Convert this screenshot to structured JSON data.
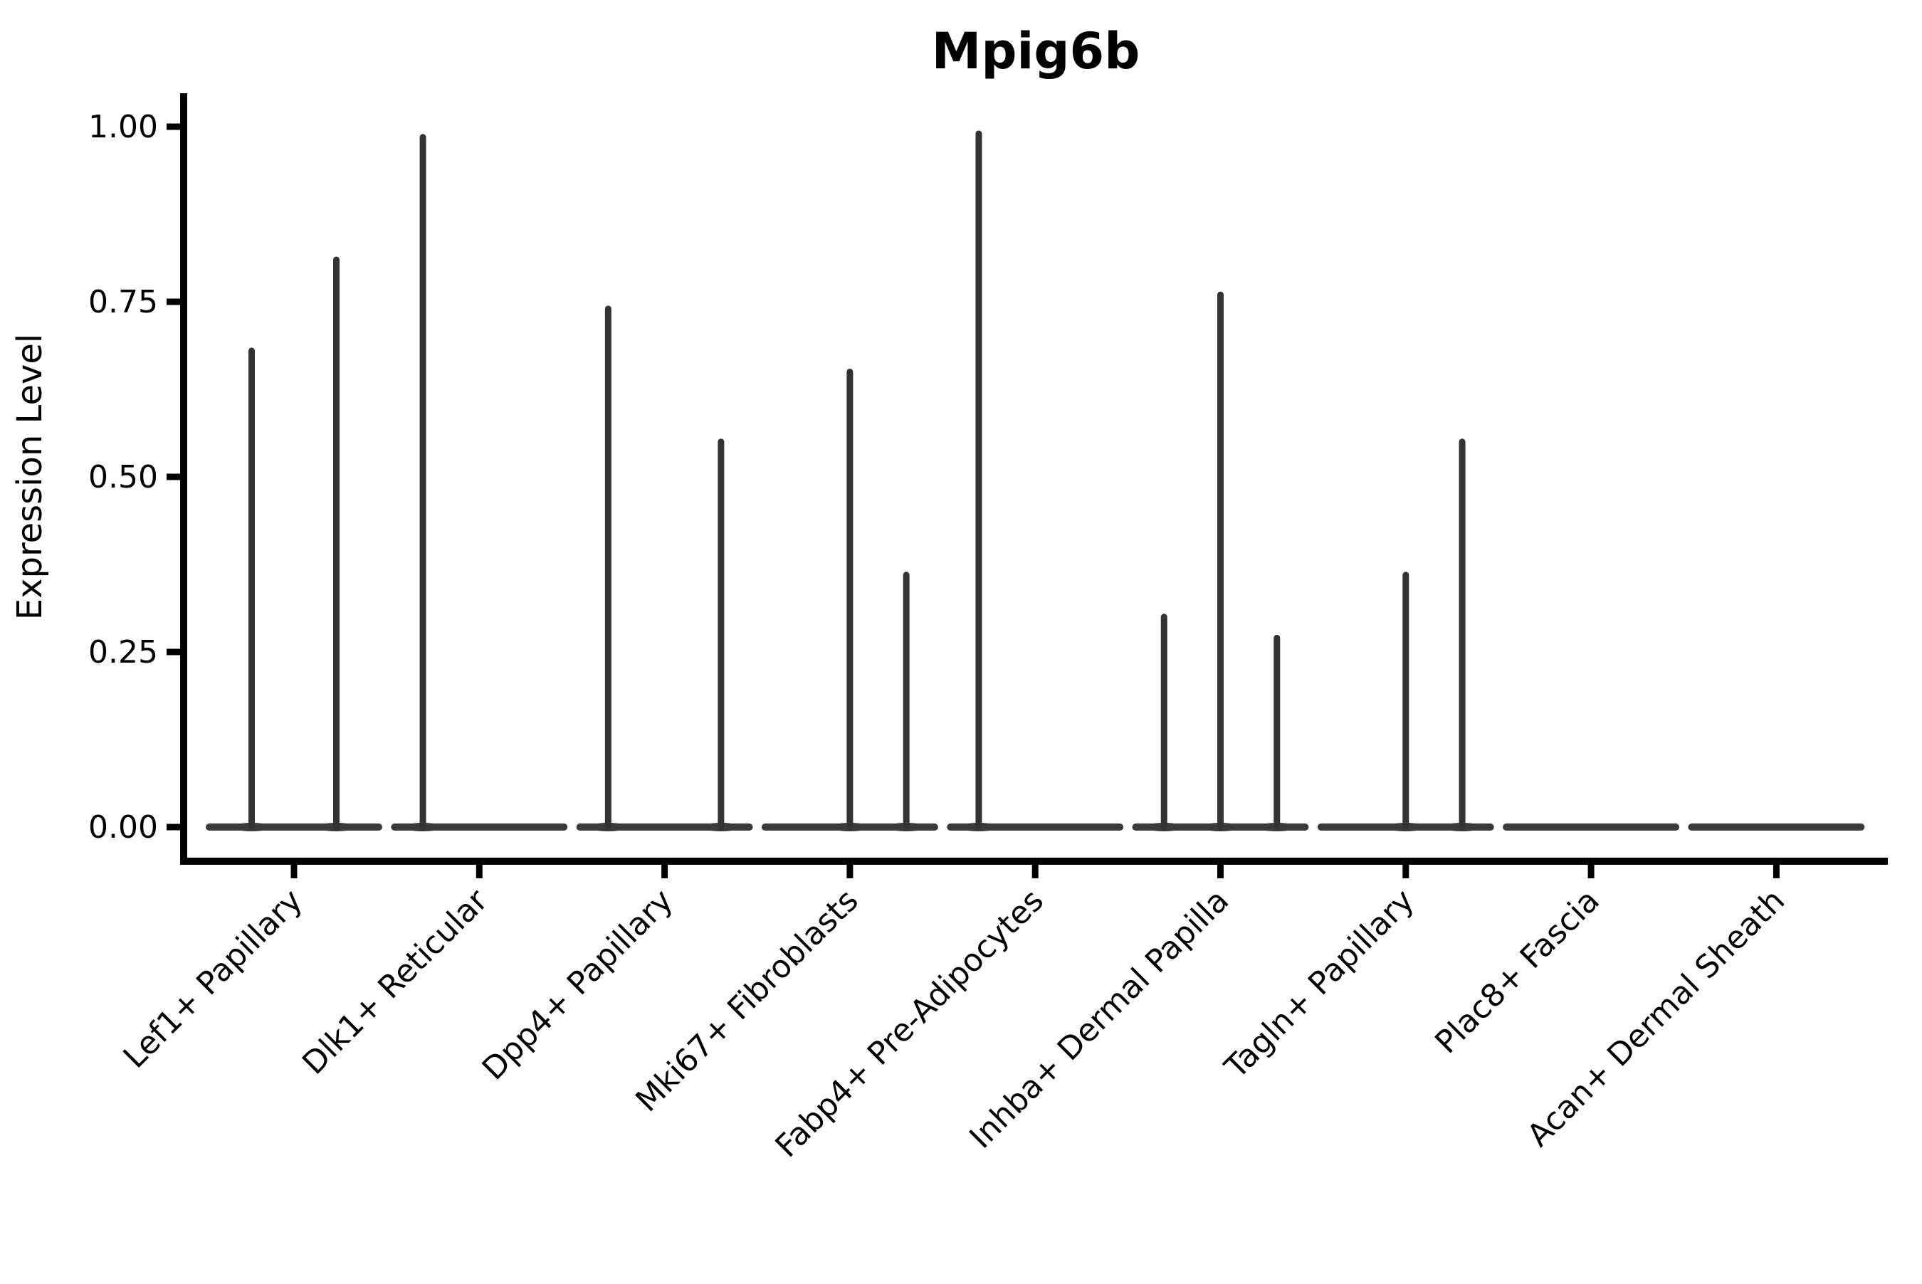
{
  "chart_data": {
    "type": "violin",
    "title": "Mpig6b",
    "xlabel": "",
    "ylabel": "Expression Level",
    "ylim": [
      0,
      1.0
    ],
    "grid": false,
    "legend": null,
    "ytick_values": [
      1.0,
      0.75,
      0.5,
      0.25,
      0.0
    ],
    "ytick_labels": [
      "1.00",
      "0.75",
      "0.50",
      "0.25",
      "0.00"
    ],
    "categories": [
      "Lef1+ Papillary",
      "Dlk1+ Reticular",
      "Dpp4+ Papillary",
      "Mki67+ Fibroblasts",
      "Fabp4+ Pre-Adipocytes",
      "Inhba+ Dermal Papilla",
      "Tagln+ Papillary",
      "Plac8+ Fascia",
      "Acan+ Dermal Sheath"
    ],
    "violins": [
      {
        "category": "Lef1+ Papillary",
        "groups": [
          {
            "pos": 0.25,
            "peak": 0.68
          },
          {
            "pos": 0.75,
            "peak": 0.81
          }
        ]
      },
      {
        "category": "Dlk1+ Reticular",
        "groups": [
          {
            "pos": 0.167,
            "peak": 0.985
          },
          {
            "pos": 0.5,
            "peak": 0
          },
          {
            "pos": 0.833,
            "peak": 0
          }
        ]
      },
      {
        "category": "Dpp4+ Papillary",
        "groups": [
          {
            "pos": 0.167,
            "peak": 0.74
          },
          {
            "pos": 0.5,
            "peak": 0
          },
          {
            "pos": 0.833,
            "peak": 0.55
          }
        ]
      },
      {
        "category": "Mki67+ Fibroblasts",
        "groups": [
          {
            "pos": 0.167,
            "peak": 0
          },
          {
            "pos": 0.5,
            "peak": 0.65
          },
          {
            "pos": 0.833,
            "peak": 0.36
          }
        ]
      },
      {
        "category": "Fabp4+ Pre-Adipocytes",
        "groups": [
          {
            "pos": 0.167,
            "peak": 0.99
          },
          {
            "pos": 0.5,
            "peak": 0
          },
          {
            "pos": 0.833,
            "peak": 0
          }
        ]
      },
      {
        "category": "Inhba+ Dermal Papilla",
        "groups": [
          {
            "pos": 0.167,
            "peak": 0.3
          },
          {
            "pos": 0.5,
            "peak": 0.76
          },
          {
            "pos": 0.833,
            "peak": 0.27
          }
        ]
      },
      {
        "category": "Tagln+ Papillary",
        "groups": [
          {
            "pos": 0.167,
            "peak": 0
          },
          {
            "pos": 0.5,
            "peak": 0.36
          },
          {
            "pos": 0.833,
            "peak": 0.55
          }
        ]
      },
      {
        "category": "Plac8+ Fascia",
        "groups": [
          {
            "pos": 0.167,
            "peak": 0
          },
          {
            "pos": 0.5,
            "peak": 0
          },
          {
            "pos": 0.833,
            "peak": 0
          }
        ]
      },
      {
        "category": "Acan+ Dermal Sheath",
        "groups": [
          {
            "pos": 0.167,
            "peak": 0
          },
          {
            "pos": 0.5,
            "peak": 0
          },
          {
            "pos": 0.833,
            "peak": 0
          }
        ]
      }
    ],
    "baseline_value": 0,
    "colors": {
      "violin": "#333333",
      "violin_baseline": "#3a3a3a",
      "axis": "#000000",
      "text": "#000000",
      "background": "#ffffff"
    }
  }
}
